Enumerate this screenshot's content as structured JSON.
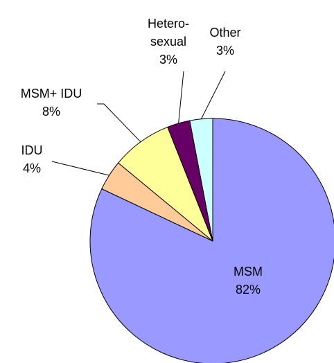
{
  "chart_data": {
    "type": "pie",
    "categories": [
      "MSM",
      "IDU",
      "MSM+ IDU",
      "Hetero-\nsexual",
      "Other"
    ],
    "values": [
      82,
      4,
      8,
      3,
      3
    ],
    "value_labels": [
      "82%",
      "4%",
      "8%",
      "3%",
      "3%"
    ],
    "colors": [
      "#9999ff",
      "#ffcc99",
      "#ffff99",
      "#660066",
      "#ccffff"
    ]
  }
}
